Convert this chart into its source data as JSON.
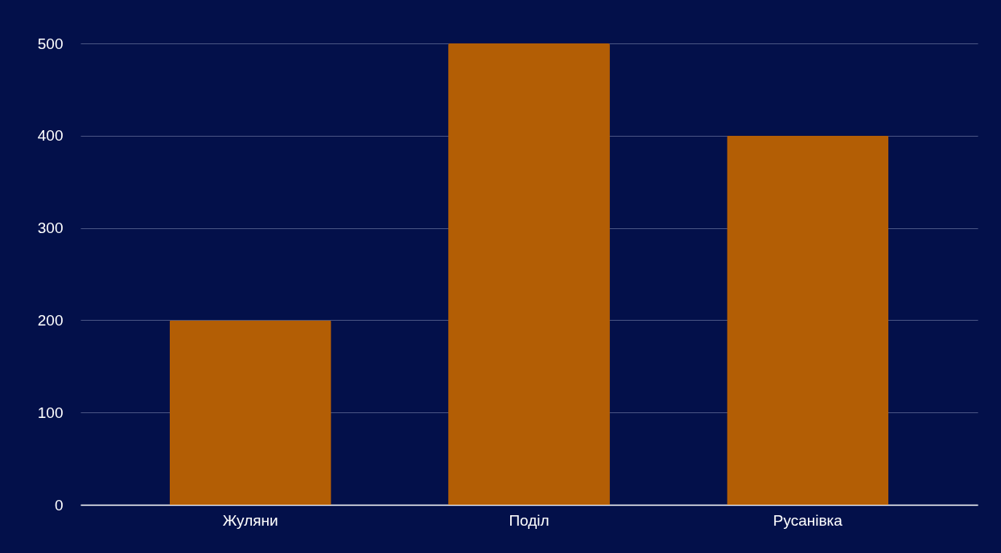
{
  "chart_data": {
    "type": "bar",
    "categories": [
      "Жуляни",
      "Поділ",
      "Русанівка"
    ],
    "values": [
      200,
      500,
      400
    ],
    "color": "#b35e05",
    "ylim": [
      0,
      500
    ],
    "yticks": [
      0,
      100,
      200,
      300,
      400,
      500
    ],
    "grid": "y"
  }
}
